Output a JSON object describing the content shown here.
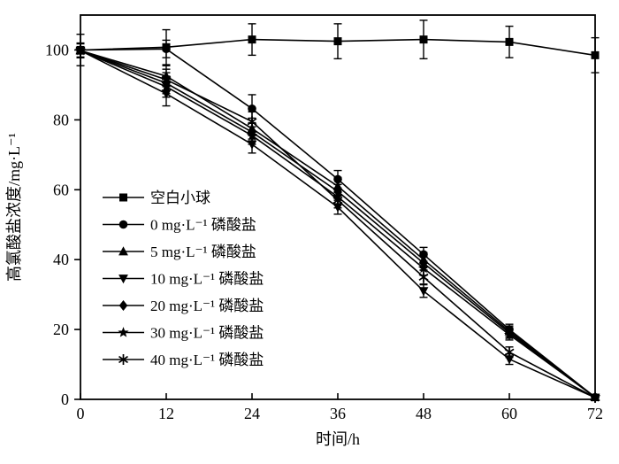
{
  "figure": {
    "background": "#ffffff",
    "ink_color": "#000000"
  },
  "chart_data": {
    "type": "line",
    "title": "",
    "xlabel": "时间/h",
    "ylabel": "高氯酸盐浓度/mg·L⁻¹",
    "xlim": [
      0,
      72
    ],
    "ylim": [
      0,
      110
    ],
    "xticks": [
      0,
      12,
      24,
      36,
      48,
      60,
      72
    ],
    "yticks": [
      0,
      20,
      40,
      60,
      80,
      100
    ],
    "grid": false,
    "legend_position": "inside-left-middle",
    "error_bars": true,
    "x": [
      0,
      12,
      24,
      36,
      48,
      60,
      72
    ],
    "series": [
      {
        "name": "空白小球",
        "marker": "square",
        "values": [
          100,
          100.8,
          103,
          102.5,
          103,
          102.3,
          98.5
        ],
        "errors": [
          4.5,
          5,
          4.5,
          5,
          5.5,
          4.5,
          5
        ]
      },
      {
        "name": "0 mg·L⁻¹ 磷酸盐",
        "marker": "circle",
        "values": [
          100,
          100.3,
          83.2,
          63,
          41.5,
          20,
          0.6
        ],
        "errors": [
          2,
          2.5,
          4,
          2.5,
          2,
          1.5,
          0.8
        ]
      },
      {
        "name": "5 mg·L⁻¹ 磷酸盐",
        "marker": "triangle-up",
        "values": [
          99.8,
          92.5,
          77.5,
          61,
          40,
          19.5,
          0.6
        ],
        "errors": [
          2,
          3,
          3,
          2.5,
          2,
          1.5,
          0.8
        ]
      },
      {
        "name": "10 mg·L⁻¹ 磷酸盐",
        "marker": "triangle-down",
        "values": [
          99.8,
          87.5,
          73,
          55,
          31,
          11.5,
          0.5
        ],
        "errors": [
          2,
          3.5,
          2.5,
          2,
          1.8,
          1.5,
          0.8
        ]
      },
      {
        "name": "20 mg·L⁻¹ 磷酸盐",
        "marker": "diamond",
        "values": [
          99.8,
          90.5,
          76.5,
          59.5,
          39,
          19,
          0.6
        ],
        "errors": [
          2,
          3,
          2.5,
          2,
          2,
          1.5,
          0.8
        ]
      },
      {
        "name": "30 mg·L⁻¹ 磷酸盐",
        "marker": "star",
        "values": [
          99.8,
          89.5,
          75.5,
          58,
          37.5,
          18.5,
          0.6
        ],
        "errors": [
          2,
          3,
          2.5,
          2,
          2,
          1.5,
          0.8
        ]
      },
      {
        "name": "40 mg·L⁻¹ 磷酸盐",
        "marker": "asterisk",
        "values": [
          99.8,
          91.5,
          79.5,
          57,
          35,
          13.5,
          0.5
        ],
        "errors": [
          2,
          3,
          2.8,
          2.2,
          2,
          1.5,
          0.8
        ]
      }
    ]
  }
}
